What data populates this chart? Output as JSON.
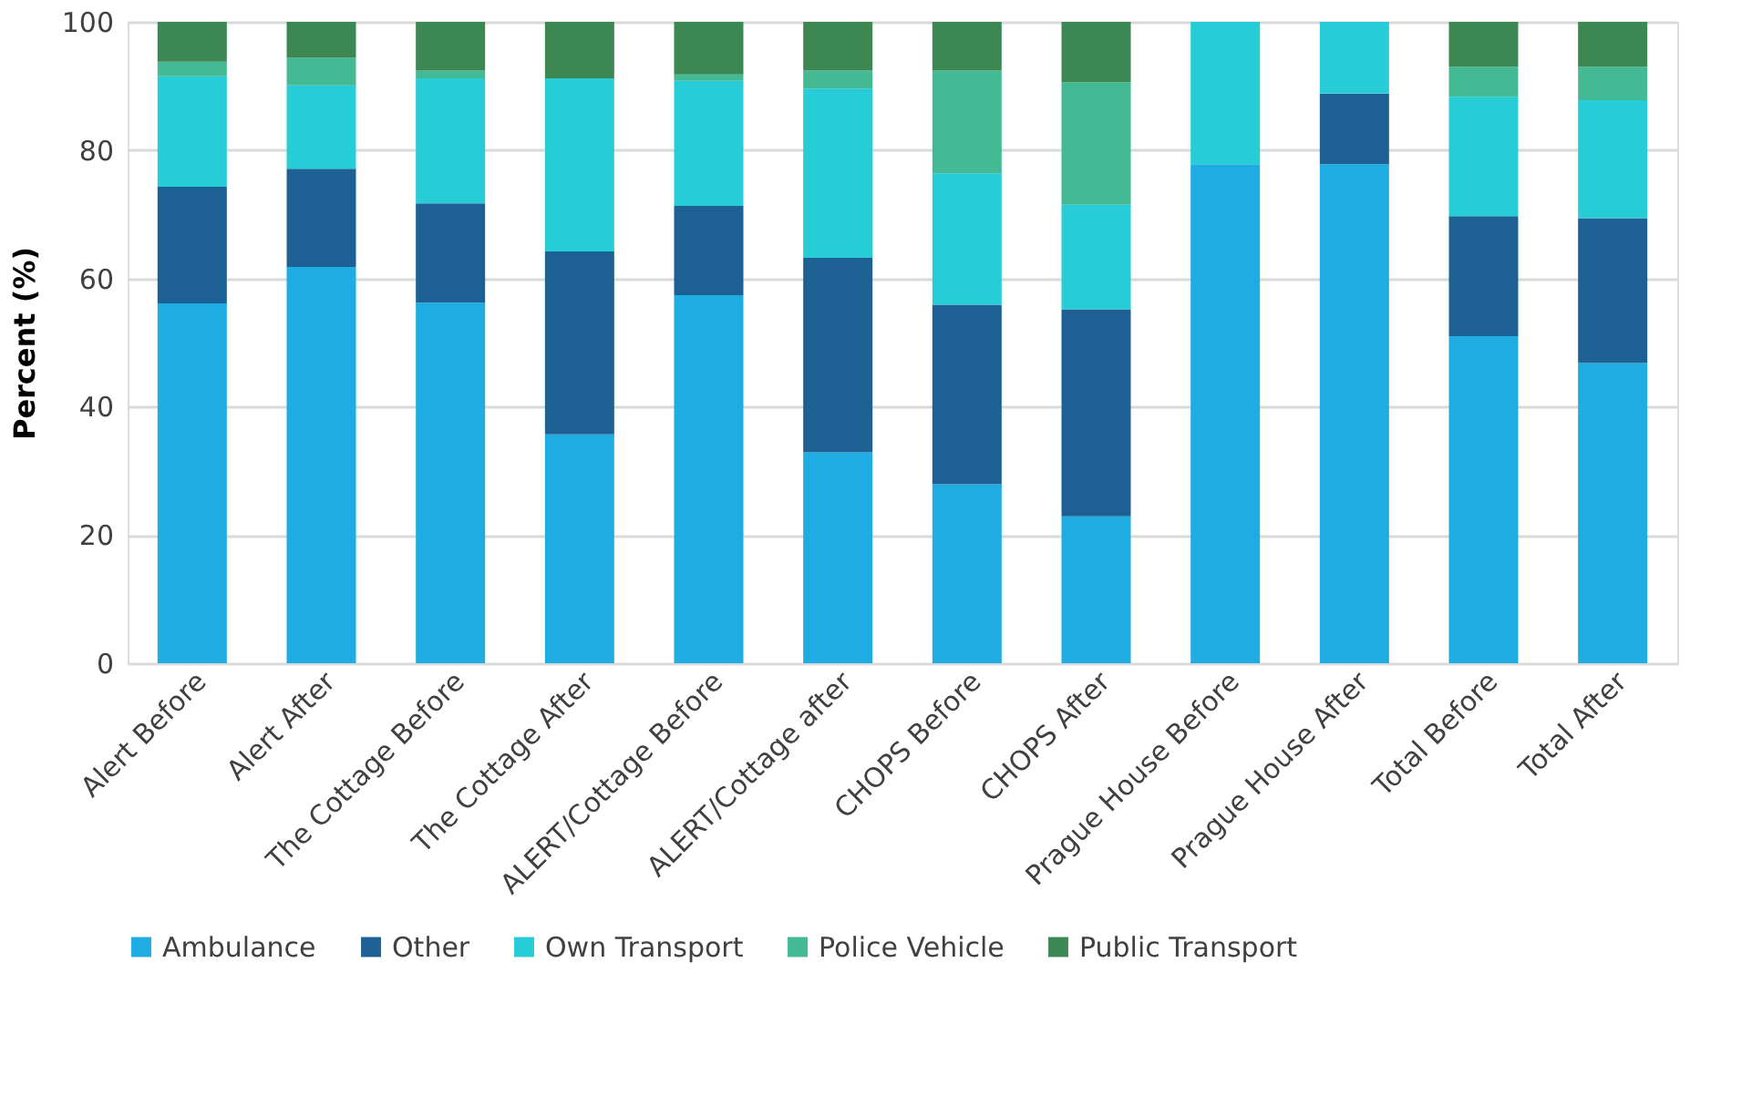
{
  "chart_data": {
    "type": "bar",
    "stacked": true,
    "ylabel": "Percent (%)",
    "categories": [
      "Alert Before",
      "Alert After",
      "The Cottage Before",
      "The Cottage After",
      "ALERT/Cottage Before",
      "ALERT/Cottage after",
      "CHOPS Before",
      "CHOPS After",
      "Prague House Before",
      "Prague House After",
      "Total Before",
      "Total After"
    ],
    "series": [
      {
        "name": "Ambulance",
        "color": "#1eace3",
        "values": [
          56.1,
          61.8,
          56.2,
          35.7,
          57.4,
          32.9,
          27.9,
          22.9,
          77.8,
          77.8,
          51.0,
          46.8
        ]
      },
      {
        "name": "Other",
        "color": "#1d6194",
        "values": [
          18.2,
          15.3,
          15.5,
          28.5,
          13.9,
          30.3,
          28.0,
          32.3,
          0,
          11.0,
          18.7,
          22.6
        ]
      },
      {
        "name": "Own Transport",
        "color": "#27cdd6",
        "values": [
          17.2,
          13.0,
          19.5,
          27.0,
          19.5,
          26.4,
          20.5,
          16.3,
          22.2,
          11.2,
          18.6,
          18.4
        ]
      },
      {
        "name": "Police Vehicle",
        "color": "#43b994",
        "values": [
          2.3,
          4.3,
          1.2,
          0,
          1.0,
          2.8,
          16.0,
          19.1,
          0,
          0,
          4.7,
          5.2
        ]
      },
      {
        "name": "Public Transport",
        "color": "#3d8753",
        "values": [
          6.2,
          5.6,
          7.6,
          8.8,
          8.2,
          7.6,
          7.6,
          9.4,
          0,
          0,
          7.0,
          7.0
        ]
      }
    ],
    "ylim": [
      0,
      100
    ],
    "yticks": [
      0,
      20,
      40,
      60,
      80,
      100
    ],
    "grid": "y",
    "legend": "bottom"
  }
}
